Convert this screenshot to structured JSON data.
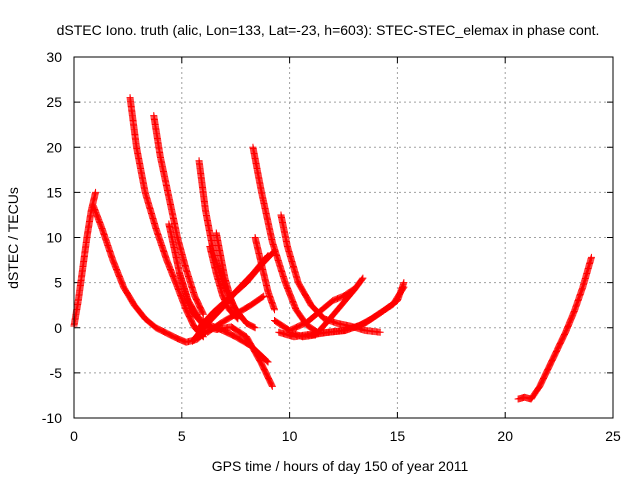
{
  "chart_data": {
    "type": "scatter",
    "title": "dSTEC Iono. truth (alic, Lon=133, Lat=-23, h=603): STEC-STEC_elemax in phase cont.",
    "xlabel": "GPS time / hours of day 150 of year 2011",
    "ylabel": "dSTEC  / TECUs",
    "xlim": [
      0,
      25
    ],
    "ylim": [
      -10,
      30
    ],
    "x_ticks": [
      0,
      5,
      10,
      15,
      20,
      25
    ],
    "y_ticks": [
      -10,
      -5,
      0,
      5,
      10,
      15,
      20,
      25,
      30
    ],
    "grid": true,
    "marker": "plus",
    "color": "#ff0000",
    "series": [
      {
        "x": [
          0.0,
          0.2,
          0.4,
          0.6,
          0.8,
          1.0
        ],
        "y": [
          0.2,
          3.0,
          6.5,
          10.0,
          13.0,
          15.0
        ]
      },
      {
        "x": [
          0.9,
          1.3,
          1.8,
          2.3,
          2.8,
          3.3,
          3.8,
          4.3,
          4.8,
          5.2,
          5.7,
          6.2
        ],
        "y": [
          13.5,
          11.0,
          7.5,
          4.5,
          2.5,
          1.0,
          0.0,
          -0.6,
          -1.2,
          -1.6,
          -1.3,
          -0.3
        ]
      },
      {
        "x": [
          2.6,
          2.9,
          3.3,
          3.8,
          4.3,
          4.8,
          5.2,
          5.6,
          6.0
        ],
        "y": [
          25.5,
          20.0,
          15.0,
          11.0,
          7.5,
          4.5,
          2.0,
          0.0,
          -1.0
        ]
      },
      {
        "x": [
          3.7,
          4.0,
          4.4,
          4.8,
          5.2,
          5.6,
          6.0
        ],
        "y": [
          23.5,
          19.0,
          14.5,
          10.0,
          6.5,
          3.5,
          1.5
        ]
      },
      {
        "x": [
          4.4,
          4.9,
          5.4,
          6.0,
          6.6,
          7.3,
          8.0,
          8.7,
          9.2
        ],
        "y": [
          11.5,
          6.0,
          2.0,
          0.3,
          -0.2,
          0.1,
          -1.0,
          -4.0,
          -6.5
        ]
      },
      {
        "x": [
          4.9,
          5.3,
          5.8,
          6.3,
          6.9,
          7.5,
          8.2,
          9.0
        ],
        "y": [
          6.0,
          3.0,
          1.0,
          0.3,
          -0.3,
          -1.0,
          -2.0,
          -3.8
        ]
      },
      {
        "x": [
          5.8,
          6.1,
          6.5,
          7.0,
          7.5,
          8.0,
          8.4
        ],
        "y": [
          18.5,
          13.0,
          8.0,
          4.5,
          2.0,
          0.5,
          0.0
        ]
      },
      {
        "x": [
          6.3,
          6.6,
          6.9,
          7.2,
          7.6
        ],
        "y": [
          9.0,
          6.0,
          3.5,
          2.0,
          1.0
        ]
      },
      {
        "x": [
          6.6,
          6.8,
          7.0,
          7.3,
          7.6
        ],
        "y": [
          10.5,
          8.0,
          5.5,
          3.0,
          1.5
        ]
      },
      {
        "x": [
          5.5,
          6.0,
          6.8,
          7.5,
          8.3,
          9.0
        ],
        "y": [
          -1.5,
          0.0,
          2.0,
          4.0,
          6.0,
          8.0
        ]
      },
      {
        "x": [
          5.8,
          6.5,
          7.2,
          8.0,
          8.7,
          9.3
        ],
        "y": [
          0.0,
          1.8,
          3.3,
          5.0,
          7.0,
          8.5
        ]
      },
      {
        "x": [
          6.2,
          6.8,
          7.5,
          8.2,
          8.8
        ],
        "y": [
          -0.5,
          0.5,
          1.5,
          2.5,
          3.5
        ]
      },
      {
        "x": [
          8.3,
          8.7,
          9.2,
          9.8,
          10.3,
          10.8,
          11.3
        ],
        "y": [
          20.0,
          15.0,
          9.5,
          5.0,
          2.0,
          0.3,
          -0.5
        ]
      },
      {
        "x": [
          8.4,
          8.7,
          9.0,
          9.3
        ],
        "y": [
          10.0,
          7.0,
          4.0,
          2.0
        ]
      },
      {
        "x": [
          9.6,
          9.9,
          10.4,
          11.0,
          11.6,
          12.2,
          12.8,
          13.5,
          14.2
        ],
        "y": [
          12.5,
          9.0,
          5.0,
          2.5,
          1.0,
          0.5,
          0.2,
          -0.3,
          -0.5
        ]
      },
      {
        "x": [
          10.0,
          10.6,
          11.2,
          11.8,
          12.4,
          13.0,
          13.4
        ],
        "y": [
          -0.5,
          -1.0,
          -0.8,
          0.8,
          2.5,
          4.2,
          5.5
        ]
      },
      {
        "x": [
          9.3,
          10.0,
          10.8,
          11.5,
          12.0,
          12.5,
          13.0
        ],
        "y": [
          0.8,
          -0.3,
          0.6,
          2.0,
          3.0,
          3.5,
          4.3
        ]
      },
      {
        "x": [
          9.5,
          10.2,
          11.0,
          11.8,
          12.5,
          13.2,
          13.8,
          14.3,
          14.8,
          15.3
        ],
        "y": [
          -0.5,
          -1.0,
          -0.7,
          -0.5,
          -0.3,
          0.2,
          1.0,
          1.8,
          2.6,
          4.5
        ]
      },
      {
        "x": [
          11.0,
          11.8,
          12.6,
          13.5,
          14.3,
          15.0,
          15.3
        ],
        "y": [
          -0.8,
          -0.5,
          -0.3,
          0.5,
          1.8,
          3.0,
          5.0
        ]
      },
      {
        "x": [
          20.6,
          20.9,
          21.2,
          21.6,
          22.0,
          22.4,
          22.8,
          23.2,
          23.6,
          24.0
        ],
        "y": [
          -7.9,
          -7.7,
          -7.9,
          -6.5,
          -4.5,
          -2.5,
          -0.5,
          1.8,
          4.5,
          7.8
        ]
      }
    ]
  }
}
